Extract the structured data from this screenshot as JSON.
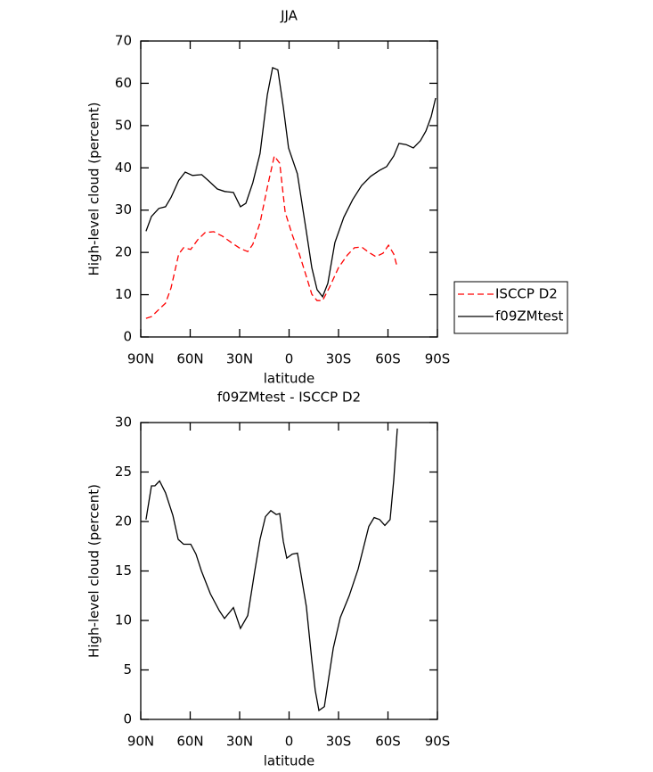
{
  "chart_data": [
    {
      "type": "line",
      "title": "JJA",
      "x_label": "latitude",
      "y_label": "High-level cloud (percent)",
      "xlim": [
        90,
        -90
      ],
      "xticks": [
        {
          "value": 90,
          "label": "90N"
        },
        {
          "value": 60,
          "label": "60N"
        },
        {
          "value": 30,
          "label": "30N"
        },
        0,
        {
          "value": -30,
          "label": "30S"
        },
        {
          "value": -60,
          "label": "60S"
        },
        {
          "value": -90,
          "label": "90S"
        }
      ],
      "ylim": [
        0,
        70
      ],
      "yticks": [
        0,
        10,
        20,
        30,
        40,
        50,
        60,
        70
      ],
      "legend_position": "right",
      "series": [
        {
          "name": "ISCCP D2",
          "color": "#ff0000",
          "dash": "dashed",
          "x": [
            86.8,
            83.5,
            79,
            75,
            71.6,
            67,
            64,
            59.7,
            55.4,
            51,
            45.7,
            40.3,
            34.9,
            29.5,
            25.1,
            22,
            17.6,
            13.2,
            9,
            5.7,
            2.4,
            -1.9,
            -6.2,
            -10.5,
            -13.8,
            -17,
            -20.3,
            -24.6,
            -30,
            -35.4,
            -39.7,
            -44,
            -48.4,
            -52.7,
            -57,
            -60.3,
            -63.5,
            -65.7
          ],
          "values": [
            4.4,
            4.8,
            6.5,
            8,
            11.6,
            19.6,
            21.1,
            20.7,
            23,
            24.7,
            24.9,
            23.8,
            22.3,
            20.9,
            20.2,
            21.9,
            27,
            35.4,
            42.8,
            41.1,
            29.5,
            24.2,
            19.6,
            14.3,
            10.1,
            8.6,
            8.6,
            11.8,
            16.4,
            19.4,
            21.1,
            21.3,
            20,
            19,
            19.8,
            21.7,
            19.6,
            16.4
          ]
        },
        {
          "name": "f09ZMtest",
          "color": "#000000",
          "dash": "solid",
          "x": [
            86.8,
            83.5,
            79,
            75,
            71.6,
            67,
            63,
            58.6,
            53,
            49,
            43.5,
            39,
            33.8,
            29.5,
            26.2,
            22,
            17.6,
            13.2,
            10,
            6.8,
            3.5,
            0.3,
            -5,
            -10.5,
            -13.8,
            -17,
            -20.3,
            -23.5,
            -27.8,
            -33.2,
            -38.6,
            -44,
            -49.5,
            -54.9,
            -59.2,
            -63.5,
            -66.7,
            -71,
            -75.4,
            -79.7,
            -83,
            -86.2,
            -88.9
          ],
          "values": [
            25,
            28.5,
            30.4,
            30.8,
            33,
            37,
            39,
            38.2,
            38.4,
            37,
            35,
            34.4,
            34.2,
            30.8,
            31.6,
            36.5,
            43.4,
            57.3,
            63.7,
            63.2,
            54.4,
            44.7,
            38.6,
            24.9,
            16.4,
            11.2,
            9.5,
            12.7,
            22.3,
            28.3,
            32.5,
            35.8,
            38,
            39.4,
            40.3,
            42.8,
            45.8,
            45.5,
            44.7,
            46.4,
            48.7,
            52.1,
            56.5
          ]
        }
      ]
    },
    {
      "type": "line",
      "title": "f09ZMtest - ISCCP D2",
      "x_label": "latitude",
      "y_label": "High-level cloud (percent)",
      "xlim": [
        90,
        -90
      ],
      "xticks": [
        {
          "value": 90,
          "label": "90N"
        },
        {
          "value": 60,
          "label": "60N"
        },
        {
          "value": 30,
          "label": "30N"
        },
        0,
        {
          "value": -30,
          "label": "30S"
        },
        {
          "value": -60,
          "label": "60S"
        },
        {
          "value": -90,
          "label": "90S"
        }
      ],
      "ylim": [
        0,
        30
      ],
      "yticks": [
        0,
        5,
        10,
        15,
        20,
        25,
        30
      ],
      "series": [
        {
          "color": "#000000",
          "dash": "solid",
          "x": [
            86.8,
            83.5,
            81.4,
            78.6,
            75,
            70.5,
            67.3,
            64,
            59.7,
            56.5,
            53.2,
            47.8,
            42.4,
            39.2,
            33.8,
            29.5,
            25.1,
            20.8,
            17.6,
            14.3,
            11.1,
            7.8,
            5.7,
            3.5,
            1.4,
            -1.9,
            -5.1,
            -10.5,
            -13.8,
            -15.9,
            -18.1,
            -21.4,
            -26.8,
            -31.1,
            -36.5,
            -41.9,
            -48.4,
            -51.6,
            -54.9,
            -58.1,
            -61.3,
            -63.5,
            -65.7
          ],
          "values": [
            20.2,
            23.6,
            23.6,
            24.1,
            22.9,
            20.6,
            18.2,
            17.7,
            17.7,
            16.7,
            15,
            12.7,
            11,
            10.2,
            11.3,
            9.2,
            10.5,
            15,
            18.2,
            20.5,
            21.1,
            20.7,
            20.8,
            18,
            16.3,
            16.7,
            16.8,
            11.4,
            6,
            2.9,
            0.9,
            1.3,
            7.2,
            10.3,
            12.5,
            15.2,
            19.5,
            20.4,
            20.2,
            19.6,
            20.2,
            24.2,
            29.4
          ]
        }
      ]
    }
  ]
}
